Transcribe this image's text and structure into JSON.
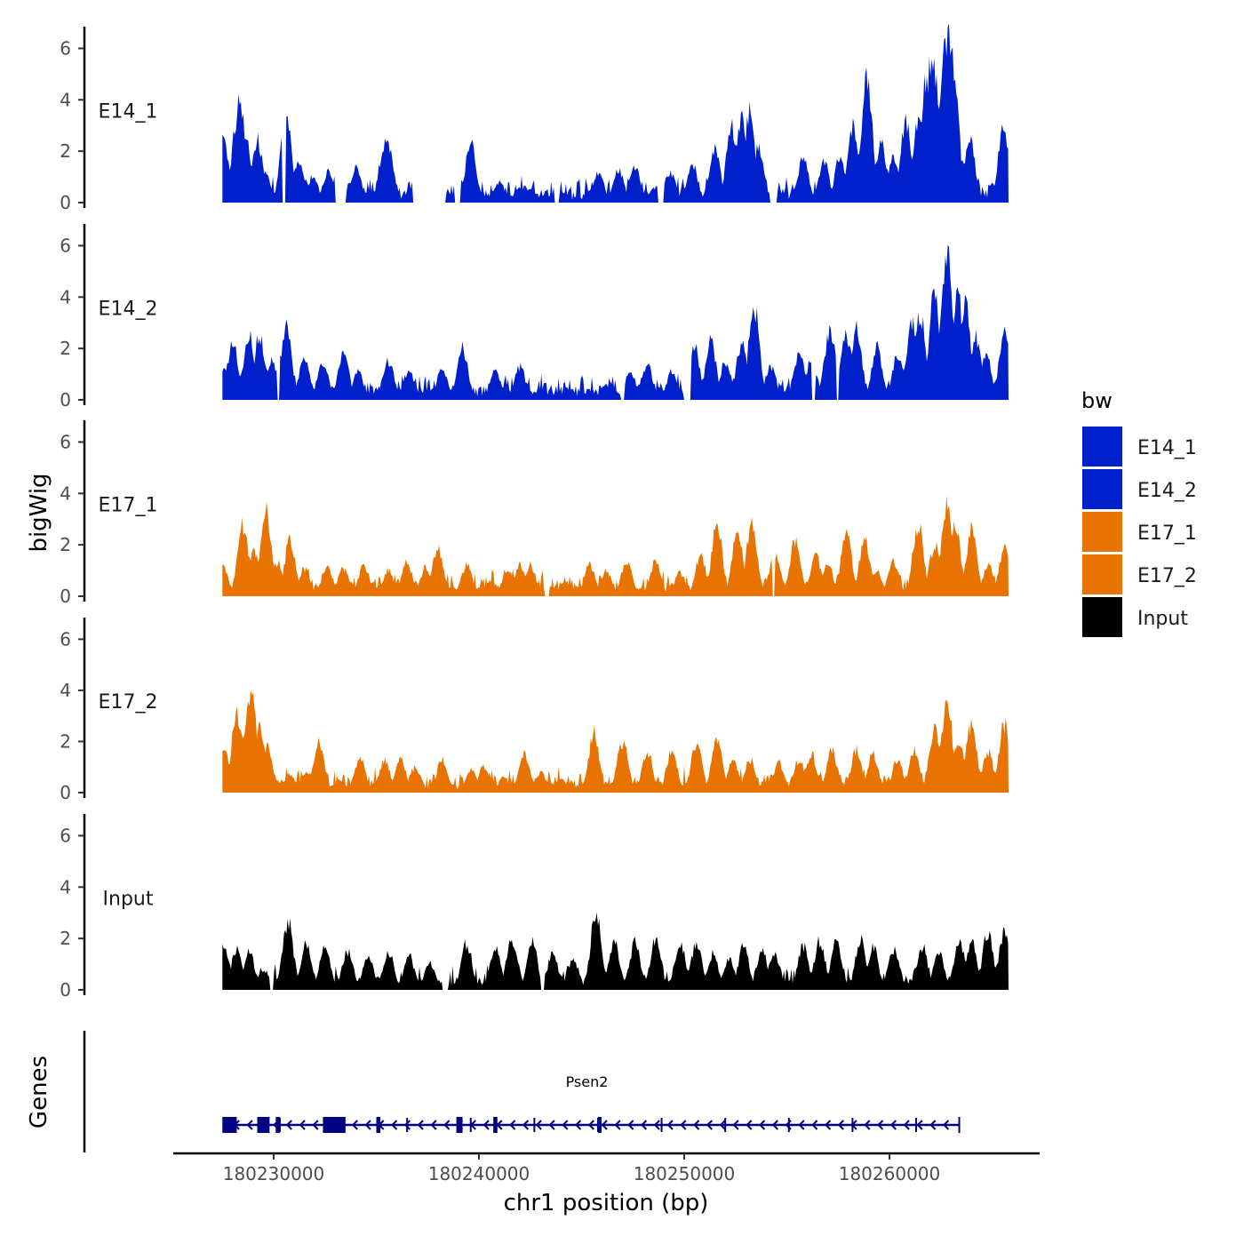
{
  "chart_data": {
    "type": "area",
    "ylabel": "bigWig",
    "xlabel": "chr1 position (bp)",
    "ylim": [
      0,
      6.5
    ],
    "y_ticks": [
      "0",
      "2",
      "4",
      "6"
    ],
    "xlim": [
      180226000,
      180268000
    ],
    "x_ticks": [
      180230000,
      180240000,
      180250000,
      180260000
    ],
    "x_tick_labels": [
      "180230000",
      "180240000",
      "180250000",
      "180260000"
    ],
    "data_range": [
      180227500,
      180265800
    ],
    "tracks": [
      {
        "name": "E14_1",
        "label": "E14_1",
        "color": "#0020CC",
        "peaks": [
          [
            180227550,
            2.4
          ],
          [
            180228200,
            3
          ],
          [
            180228350,
            4.1
          ],
          [
            180228600,
            2.6
          ],
          [
            180229200,
            2.4
          ],
          [
            180229550,
            1.2
          ],
          [
            180230600,
            3.3
          ],
          [
            180231200,
            1.6
          ],
          [
            180231900,
            1
          ],
          [
            180232650,
            1.2
          ],
          [
            180233400,
            0.6
          ],
          [
            180234000,
            1.4
          ],
          [
            180235400,
            2.3
          ],
          [
            180235600,
            2.2
          ],
          [
            180237500,
            0.6
          ],
          [
            180239600,
            2.3
          ],
          [
            180241000,
            0.8
          ],
          [
            180242500,
            0.5
          ],
          [
            180244000,
            0.4
          ],
          [
            180245800,
            1.2
          ],
          [
            180246800,
            1.3
          ],
          [
            180247600,
            1.4
          ],
          [
            180248600,
            0.6
          ],
          [
            180249300,
            1.2
          ],
          [
            180250400,
            1.5
          ],
          [
            180251500,
            2
          ],
          [
            180252300,
            3
          ],
          [
            180252800,
            3.3
          ],
          [
            180253200,
            3.5
          ],
          [
            180253600,
            2.2
          ],
          [
            180255800,
            1.8
          ],
          [
            180256800,
            1.6
          ],
          [
            180257600,
            1.8
          ],
          [
            180258200,
            3
          ],
          [
            180258900,
            4.8
          ],
          [
            180259600,
            2.3
          ],
          [
            180260200,
            1.7
          ],
          [
            180260800,
            3.1
          ],
          [
            180261400,
            3.3
          ],
          [
            180261800,
            5
          ],
          [
            180262100,
            6
          ],
          [
            180262500,
            3.5
          ],
          [
            180262700,
            6
          ],
          [
            180262850,
            6.5
          ],
          [
            180263100,
            5.5
          ],
          [
            180263400,
            2
          ],
          [
            180263900,
            2.5
          ],
          [
            180265550,
            2.8
          ]
        ],
        "gaps": [
          [
            180230400,
            180230600
          ],
          [
            180233000,
            180233500
          ],
          [
            180236800,
            180238400
          ],
          [
            180238800,
            180239100
          ],
          [
            180243700,
            180243900
          ],
          [
            180248700,
            180249000
          ],
          [
            180254200,
            180254500
          ]
        ]
      },
      {
        "name": "E14_2",
        "label": "E14_2",
        "color": "#0020CC",
        "peaks": [
          [
            180227700,
            1.3
          ],
          [
            180228000,
            2.2
          ],
          [
            180228800,
            2.6
          ],
          [
            180229300,
            2.5
          ],
          [
            180229900,
            1.6
          ],
          [
            180230600,
            2.8
          ],
          [
            180231500,
            1.7
          ],
          [
            180232400,
            1.5
          ],
          [
            180233400,
            1.9
          ],
          [
            180234100,
            1.1
          ],
          [
            180235600,
            1.5
          ],
          [
            180236600,
            1.1
          ],
          [
            180238200,
            1.2
          ],
          [
            180239200,
            2
          ],
          [
            180240800,
            1.1
          ],
          [
            180242000,
            1.3
          ],
          [
            180243000,
            0.4
          ],
          [
            180244400,
            0.4
          ],
          [
            180246200,
            0.6
          ],
          [
            180247400,
            1
          ],
          [
            180248200,
            1.4
          ],
          [
            180249400,
            1.1
          ],
          [
            180250500,
            2.1
          ],
          [
            180251300,
            2.3
          ],
          [
            180252000,
            1.5
          ],
          [
            180252800,
            2.2
          ],
          [
            180253400,
            3.7
          ],
          [
            180254200,
            1.3
          ],
          [
            180255600,
            1.8
          ],
          [
            180256200,
            1.6
          ],
          [
            180257100,
            2.7
          ],
          [
            180257900,
            2.5
          ],
          [
            180258400,
            2.7
          ],
          [
            180259400,
            2
          ],
          [
            180260400,
            1.8
          ],
          [
            180261100,
            2.9
          ],
          [
            180261500,
            3.3
          ],
          [
            180262200,
            4.2
          ],
          [
            180262800,
            5.9
          ],
          [
            180263300,
            4.2
          ],
          [
            180263700,
            3.6
          ],
          [
            180264200,
            2.4
          ],
          [
            180264700,
            1.8
          ],
          [
            180265600,
            2.5
          ]
        ],
        "gaps": [
          [
            180230200,
            180230300
          ],
          [
            180246900,
            180247100
          ],
          [
            180250000,
            180250300
          ],
          [
            180256200,
            180256400
          ],
          [
            180257400,
            180257500
          ]
        ]
      },
      {
        "name": "E17_1",
        "label": "E17_1",
        "color": "#E87300",
        "peaks": [
          [
            180227550,
            1.1
          ],
          [
            180228500,
            2.8
          ],
          [
            180229000,
            1.8
          ],
          [
            180229600,
            3.3
          ],
          [
            180230200,
            1.3
          ],
          [
            180230800,
            2.2
          ],
          [
            180231500,
            1.1
          ],
          [
            180232600,
            1.2
          ],
          [
            180233400,
            1.1
          ],
          [
            180234400,
            1.2
          ],
          [
            180235600,
            1
          ],
          [
            180236500,
            1.3
          ],
          [
            180237400,
            1.1
          ],
          [
            180238000,
            1.9
          ],
          [
            180239400,
            1.2
          ],
          [
            180240600,
            0.6
          ],
          [
            180241400,
            1.1
          ],
          [
            180242000,
            1.2
          ],
          [
            180242500,
            1.2
          ],
          [
            180243200,
            0.4
          ],
          [
            180244200,
            0.6
          ],
          [
            180245400,
            1.2
          ],
          [
            180246200,
            1
          ],
          [
            180247200,
            1.4
          ],
          [
            180248600,
            1.3
          ],
          [
            180249800,
            0.9
          ],
          [
            180250800,
            1.6
          ],
          [
            180251600,
            2.8
          ],
          [
            180252600,
            2.5
          ],
          [
            180253300,
            2.9
          ],
          [
            180254400,
            1.6
          ],
          [
            180255400,
            2.1
          ],
          [
            180256400,
            1.6
          ],
          [
            180257000,
            1.2
          ],
          [
            180257900,
            2.4
          ],
          [
            180258800,
            2.2
          ],
          [
            180259400,
            1
          ],
          [
            180260200,
            1.4
          ],
          [
            180261400,
            2.8
          ],
          [
            180262200,
            2
          ],
          [
            180262800,
            3.5
          ],
          [
            180263200,
            2.8
          ],
          [
            180264000,
            2.6
          ],
          [
            180264800,
            1.2
          ],
          [
            180265600,
            1.8
          ]
        ],
        "gaps": [
          [
            180243200,
            180243400
          ],
          [
            180254300,
            180254400
          ]
        ]
      },
      {
        "name": "E17_2",
        "label": "E17_2",
        "color": "#E87300",
        "peaks": [
          [
            180227550,
            1.8
          ],
          [
            180228200,
            3
          ],
          [
            180228600,
            2.5
          ],
          [
            180228900,
            4
          ],
          [
            180229300,
            2.5
          ],
          [
            180229700,
            1.8
          ],
          [
            180230800,
            0.7
          ],
          [
            180231600,
            0.8
          ],
          [
            180232200,
            1.9
          ],
          [
            180233200,
            0.5
          ],
          [
            180234200,
            1.4
          ],
          [
            180235400,
            1.3
          ],
          [
            180236200,
            1.3
          ],
          [
            180236900,
            1
          ],
          [
            180238200,
            1.3
          ],
          [
            180239600,
            0.9
          ],
          [
            180240200,
            1
          ],
          [
            180241200,
            0.6
          ],
          [
            180242200,
            1.5
          ],
          [
            180243000,
            0.8
          ],
          [
            180244000,
            0.5
          ],
          [
            180245600,
            2.3
          ],
          [
            180247000,
            2
          ],
          [
            180248200,
            1.6
          ],
          [
            180249400,
            1.6
          ],
          [
            180250600,
            1.9
          ],
          [
            180251600,
            2.1
          ],
          [
            180252400,
            1.3
          ],
          [
            180253200,
            1.3
          ],
          [
            180254600,
            1.2
          ],
          [
            180255600,
            1.3
          ],
          [
            180256200,
            1.5
          ],
          [
            180257200,
            1.6
          ],
          [
            180258400,
            1.7
          ],
          [
            180259200,
            1.5
          ],
          [
            180260400,
            1.3
          ],
          [
            180261200,
            1.6
          ],
          [
            180262200,
            2.4
          ],
          [
            180262800,
            3.6
          ],
          [
            180263400,
            2.1
          ],
          [
            180264000,
            2.7
          ],
          [
            180264800,
            1.6
          ],
          [
            180265600,
            2.7
          ]
        ],
        "gaps": []
      },
      {
        "name": "Input",
        "label": "Input",
        "color": "#000000",
        "peaks": [
          [
            180227550,
            1.8
          ],
          [
            180228200,
            1.6
          ],
          [
            180228800,
            1.5
          ],
          [
            180229500,
            0.8
          ],
          [
            180230700,
            2.6
          ],
          [
            180231600,
            1.8
          ],
          [
            180232500,
            1.6
          ],
          [
            180233600,
            1.5
          ],
          [
            180234600,
            1.4
          ],
          [
            180235600,
            1.5
          ],
          [
            180236600,
            1.3
          ],
          [
            180237600,
            1
          ],
          [
            180239400,
            1.8
          ],
          [
            180240800,
            1.6
          ],
          [
            180241600,
            1.9
          ],
          [
            180242600,
            1.8
          ],
          [
            180243600,
            1.4
          ],
          [
            180244600,
            1.2
          ],
          [
            180245700,
            3
          ],
          [
            180246600,
            1.8
          ],
          [
            180247600,
            1.8
          ],
          [
            180248600,
            1.9
          ],
          [
            180249800,
            1.9
          ],
          [
            180250600,
            1.8
          ],
          [
            180251400,
            1.4
          ],
          [
            180252200,
            1.2
          ],
          [
            180252900,
            1.7
          ],
          [
            180253800,
            1.6
          ],
          [
            180254400,
            1.5
          ],
          [
            180255800,
            1.7
          ],
          [
            180256600,
            1.9
          ],
          [
            180257400,
            1.9
          ],
          [
            180258600,
            1.9
          ],
          [
            180259200,
            1.7
          ],
          [
            180260200,
            1.6
          ],
          [
            180261600,
            1.7
          ],
          [
            180262400,
            1.5
          ],
          [
            180263400,
            1.9
          ],
          [
            180264000,
            1.9
          ],
          [
            180264800,
            2.3
          ],
          [
            180265600,
            2.3
          ]
        ],
        "gaps": [
          [
            180229800,
            180230000
          ],
          [
            180238200,
            180238500
          ],
          [
            180243000,
            180243200
          ]
        ]
      }
    ],
    "genes_panel": {
      "label": "Genes",
      "gene_name": "Psen2",
      "color": "#000080",
      "start": 180227700,
      "end": 180263400,
      "strand": "-",
      "exons": [
        [
          180227500,
          180228200
        ],
        [
          180229200,
          180229800
        ],
        [
          180230100,
          180230300
        ],
        [
          180232400,
          180233500
        ],
        [
          180235000,
          180235200
        ],
        [
          180238900,
          180239200
        ],
        [
          180240700,
          180240900
        ],
        [
          180245800,
          180245900
        ]
      ]
    },
    "legend": {
      "title": "bw",
      "entries": [
        {
          "label": "E14_1",
          "color": "#0020CC"
        },
        {
          "label": "E14_2",
          "color": "#0020CC"
        },
        {
          "label": "E17_1",
          "color": "#E87300"
        },
        {
          "label": "E17_2",
          "color": "#E87300"
        },
        {
          "label": "Input",
          "color": "#000000"
        }
      ],
      "position": "right"
    }
  }
}
